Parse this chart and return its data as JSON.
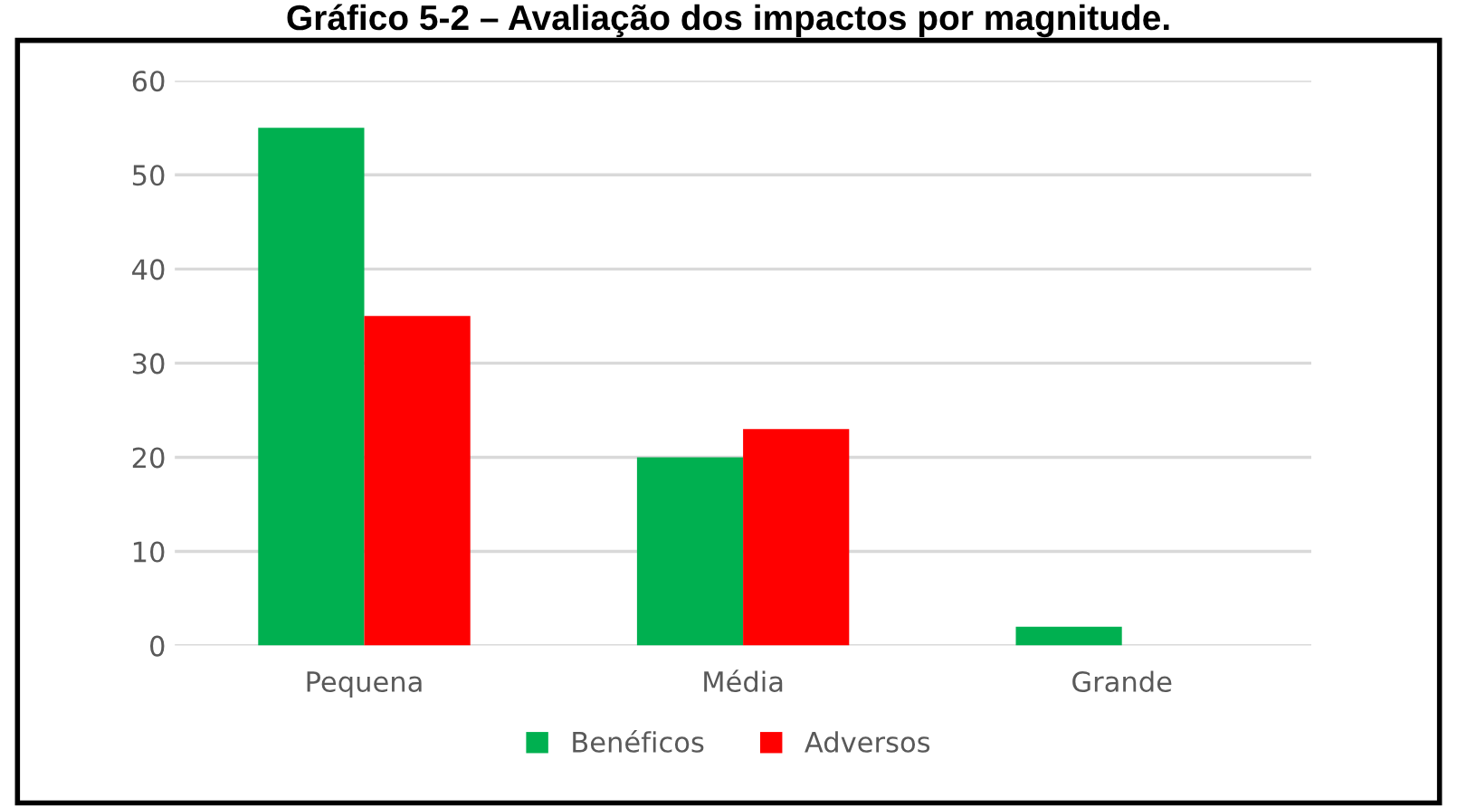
{
  "chart_data": {
    "type": "bar",
    "title": "Gráfico 5-2 – Avaliação dos impactos por magnitude.",
    "categories": [
      "Pequena",
      "Média",
      "Grande"
    ],
    "series": [
      {
        "name": "Benéficos",
        "color": "#00b050",
        "values": [
          55,
          20,
          2
        ]
      },
      {
        "name": "Adversos",
        "color": "#ff0000",
        "values": [
          35,
          23,
          0
        ]
      }
    ],
    "ylim": [
      0,
      60
    ],
    "yticks": [
      0,
      10,
      20,
      30,
      40,
      50,
      60
    ],
    "grid": "y",
    "legend": "bottom"
  }
}
